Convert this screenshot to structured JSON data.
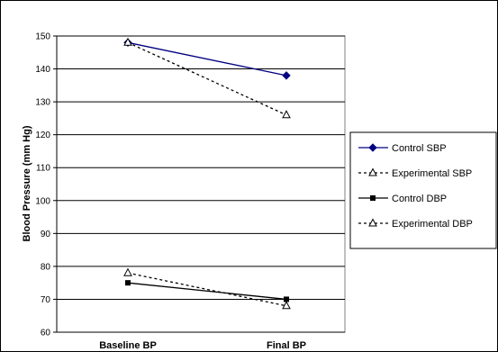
{
  "chart_data": {
    "type": "line",
    "title": "",
    "xlabel": "",
    "ylabel": "Blood Pressure (mm Hg)",
    "categories": [
      "Baseline BP",
      "Final BP"
    ],
    "ylim": [
      60,
      150
    ],
    "yticks": [
      60,
      70,
      80,
      90,
      100,
      110,
      120,
      130,
      140,
      150
    ],
    "grid": true,
    "legend_position": "right",
    "series": [
      {
        "name": "Control SBP",
        "values": [
          148,
          138
        ],
        "color": "#000080",
        "line": "solid",
        "marker": "diamond"
      },
      {
        "name": "Experimental SBP",
        "values": [
          148,
          126
        ],
        "color": "#000000",
        "line": "dashed",
        "marker": "triangle-open"
      },
      {
        "name": "Control DBP",
        "values": [
          75,
          70
        ],
        "color": "#000000",
        "line": "solid",
        "marker": "square"
      },
      {
        "name": "Experimental DBP",
        "values": [
          78,
          68
        ],
        "color": "#000000",
        "line": "dashed",
        "marker": "triangle-open"
      }
    ]
  }
}
